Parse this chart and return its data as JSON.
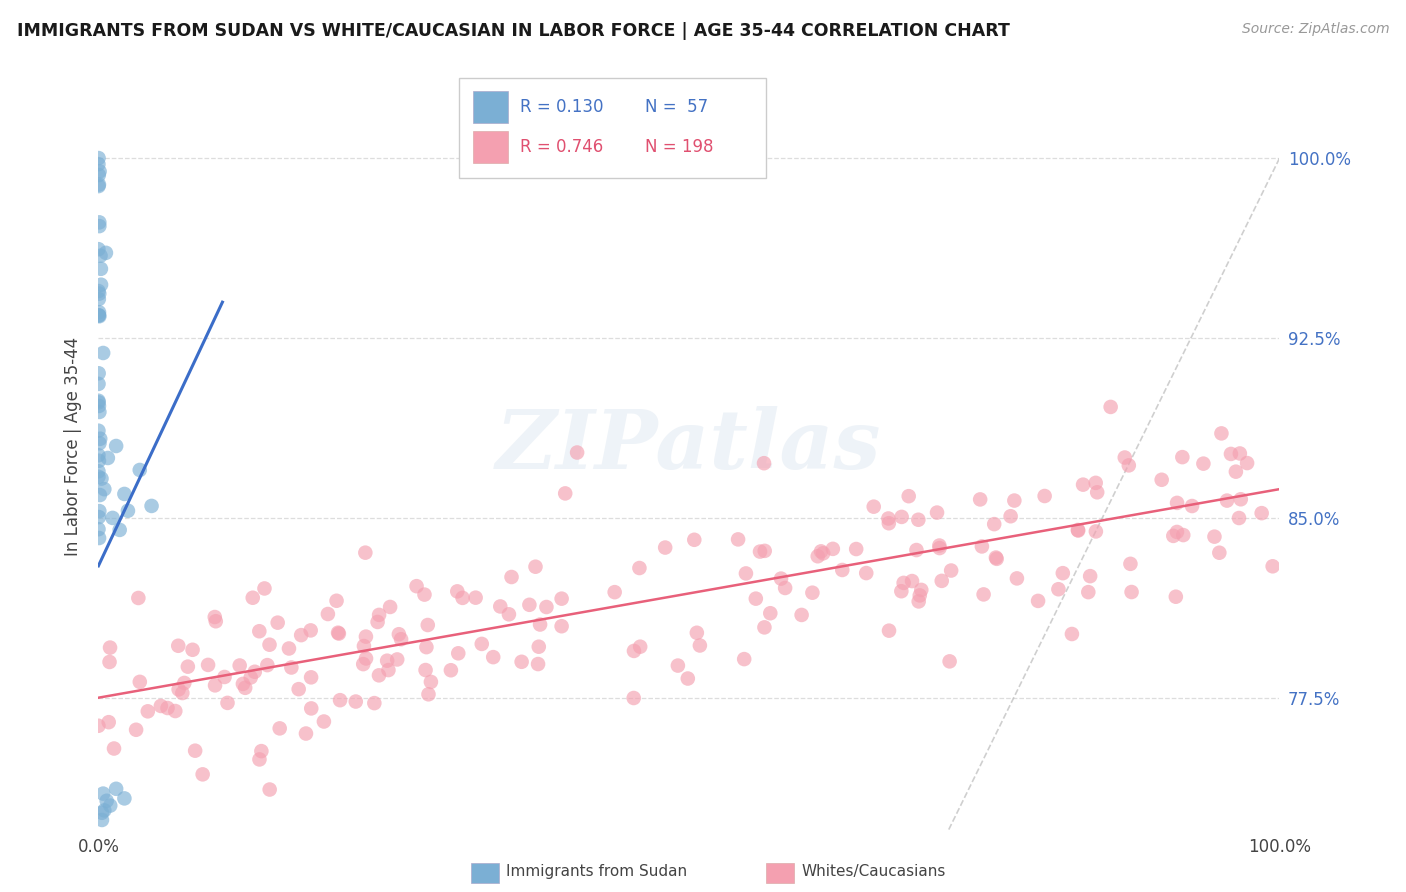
{
  "title": "IMMIGRANTS FROM SUDAN VS WHITE/CAUCASIAN IN LABOR FORCE | AGE 35-44 CORRELATION CHART",
  "source": "Source: ZipAtlas.com",
  "ylabel": "In Labor Force | Age 35-44",
  "xlim": [
    0.0,
    1.0
  ],
  "ylim": [
    0.72,
    1.04
  ],
  "yticks": [
    0.775,
    0.85,
    0.925,
    1.0
  ],
  "ytick_labels": [
    "77.5%",
    "85.0%",
    "92.5%",
    "100.0%"
  ],
  "xtick_labels": [
    "0.0%",
    "100.0%"
  ],
  "legend_blue_R": "0.130",
  "legend_blue_N": "57",
  "legend_pink_R": "0.746",
  "legend_pink_N": "198",
  "legend_blue_label": "Immigrants from Sudan",
  "legend_pink_label": "Whites/Caucasians",
  "watermark_text": "ZIPatlas",
  "blue_color": "#7BAFD4",
  "pink_color": "#F4A0B0",
  "blue_line_color": "#3B6DC8",
  "pink_line_color": "#E8607A",
  "diagonal_color": "#BBBBBB",
  "blue_R": 0.13,
  "blue_N": 57,
  "pink_R": 0.746,
  "pink_N": 198,
  "blue_trend_x0": 0.0,
  "blue_trend_x1": 0.105,
  "blue_trend_y0": 0.83,
  "blue_trend_y1": 0.94,
  "pink_trend_x0": 0.0,
  "pink_trend_x1": 1.0,
  "pink_trend_y0": 0.775,
  "pink_trend_y1": 0.862
}
